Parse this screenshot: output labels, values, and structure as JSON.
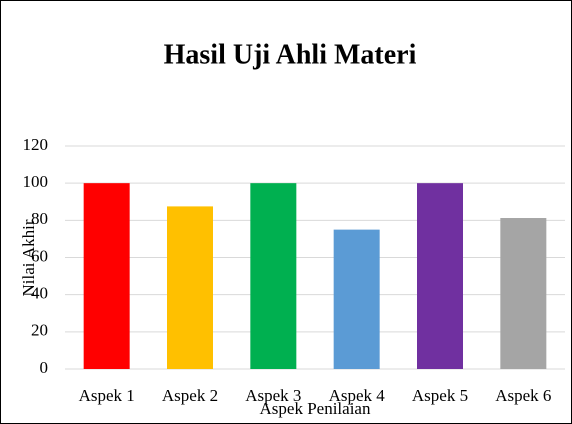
{
  "chart_data": {
    "type": "bar",
    "title": "Hasil Uji Ahli Materi",
    "x_label": "Aspek Penilaian",
    "y_label": "Nilai Akhir",
    "categories": [
      "Aspek 1",
      "Aspek 2",
      "Aspek 3",
      "Aspek 4",
      "Aspek 5",
      "Aspek 6"
    ],
    "values": [
      100,
      87.5,
      100,
      75,
      100,
      81.25
    ],
    "colors": [
      "#ff0000",
      "#ffc000",
      "#00b050",
      "#5b9bd5",
      "#7030a0",
      "#a5a5a5"
    ],
    "ylim": [
      0,
      120
    ],
    "yticks": [
      0,
      20,
      40,
      60,
      80,
      100,
      120
    ],
    "grid": true
  }
}
